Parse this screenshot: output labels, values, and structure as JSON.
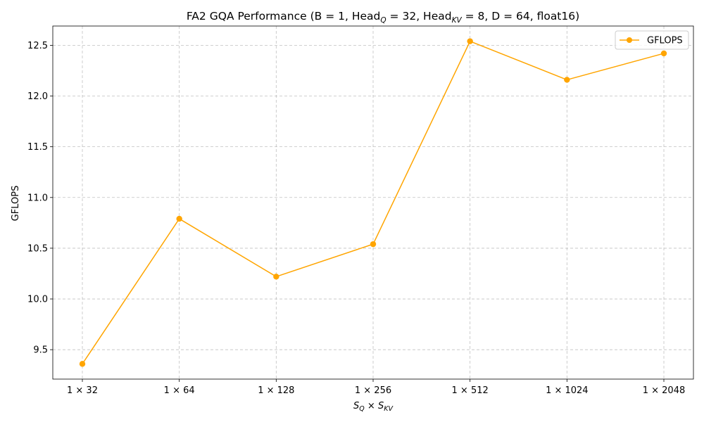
{
  "chart_data": {
    "type": "line",
    "title": "FA2 GQA Performance (B = 1, Head",
    "title_parts": {
      "prefix": "FA2 GQA Performance (B = 1, Head",
      "sub_q": "Q",
      "mid": " = 32, Head",
      "sub_kv": "KV",
      "suffix": " = 8, D = 64, float16)"
    },
    "xlabel_parts": {
      "s1": "S",
      "sub1": "Q",
      "times": " × ",
      "s2": "S",
      "sub2": "KV"
    },
    "ylabel": "GFLOPS",
    "categories": [
      "1 × 32",
      "1 × 64",
      "1 × 128",
      "1 × 256",
      "1 × 512",
      "1 × 1024",
      "1 × 2048"
    ],
    "series": [
      {
        "name": "GFLOPS",
        "color": "#FFA500",
        "values": [
          9.36,
          10.79,
          10.22,
          10.54,
          12.54,
          12.16,
          12.42
        ]
      }
    ],
    "ylim": [
      9.21,
      12.69
    ],
    "yticks": [
      9.5,
      10.0,
      10.5,
      11.0,
      11.5,
      12.0,
      12.5
    ],
    "ytick_labels": [
      "9.5",
      "10.0",
      "10.5",
      "11.0",
      "11.5",
      "12.0",
      "12.5"
    ],
    "grid": true,
    "legend_position": "top-right"
  }
}
